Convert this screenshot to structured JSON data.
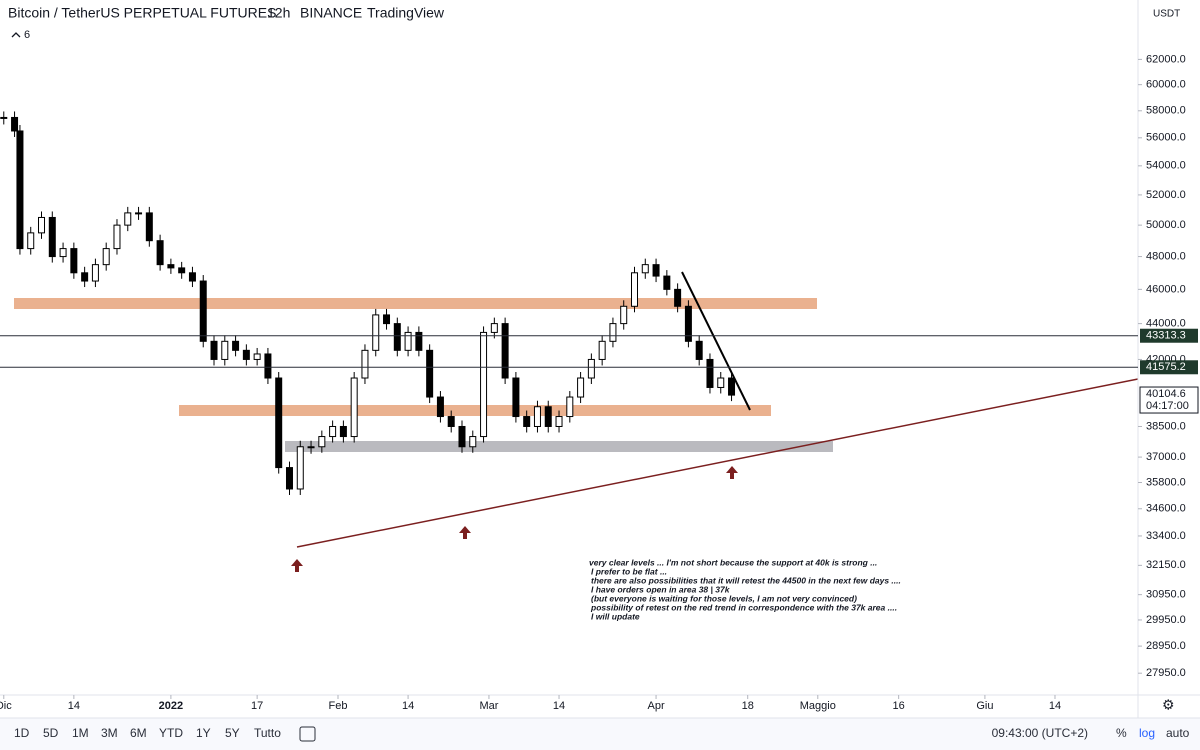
{
  "header": {
    "symbol": "Bitcoin / TetherUS PERPETUAL FUTURES",
    "interval": "12h",
    "exchange": "BINANCE",
    "source": "TradingView",
    "indicators": "6",
    "currency": "USDT"
  },
  "chart_data": {
    "type": "candlestick",
    "log_scale": true,
    "ylim": [
      27170,
      66970
    ],
    "yticks": [
      {
        "value": 62000,
        "label": "62000.0"
      },
      {
        "value": 60000,
        "label": "60000.0"
      },
      {
        "value": 58000,
        "label": "58000.0"
      },
      {
        "value": 56000,
        "label": "56000.0"
      },
      {
        "value": 54000,
        "label": "54000.0"
      },
      {
        "value": 52000,
        "label": "52000.0"
      },
      {
        "value": 50000,
        "label": "50000.0"
      },
      {
        "value": 48000,
        "label": "48000.0"
      },
      {
        "value": 46000,
        "label": "46000.0"
      },
      {
        "value": 44000,
        "label": "44000.0"
      },
      {
        "value": 42000,
        "label": "42000.0"
      },
      {
        "value": 38500,
        "label": "38500.0"
      },
      {
        "value": 37000,
        "label": "37000.0"
      },
      {
        "value": 35800,
        "label": "35800.0"
      },
      {
        "value": 34600,
        "label": "34600.0"
      },
      {
        "value": 33400,
        "label": "33400.0"
      },
      {
        "value": 32150,
        "label": "32150.0"
      },
      {
        "value": 30950,
        "label": "30950.0"
      },
      {
        "value": 29950,
        "label": "29950.0"
      },
      {
        "value": 28950,
        "label": "28950.0"
      },
      {
        "value": 27950,
        "label": "27950.0"
      }
    ],
    "xlim": [
      -0.7,
      210.4
    ],
    "xticks": [
      {
        "value": 0,
        "label": "Dic"
      },
      {
        "value": 13,
        "label": "14"
      },
      {
        "value": 31,
        "label": "2022"
      },
      {
        "value": 47,
        "label": "17"
      },
      {
        "value": 62,
        "label": "Feb"
      },
      {
        "value": 75,
        "label": "14"
      },
      {
        "value": 90,
        "label": "Mar"
      },
      {
        "value": 103,
        "label": "14"
      },
      {
        "value": 121,
        "label": "Apr"
      },
      {
        "value": 138,
        "label": "18"
      },
      {
        "value": 151,
        "label": "Maggio"
      },
      {
        "value": 166,
        "label": "16"
      },
      {
        "value": 182,
        "label": "Giu"
      },
      {
        "value": 195,
        "label": "14"
      }
    ],
    "x": [
      0,
      2,
      3,
      5,
      7,
      9,
      11,
      13,
      15,
      17,
      19,
      21,
      23,
      25,
      27,
      29,
      31,
      33,
      35,
      37,
      39,
      41,
      43,
      45,
      47,
      49,
      51,
      53,
      55,
      57,
      59,
      61,
      63,
      65,
      67,
      69,
      71,
      73,
      75,
      77,
      79,
      81,
      83,
      85,
      87,
      89,
      91,
      93,
      95,
      97,
      99,
      101,
      103,
      105,
      107,
      109,
      111,
      113,
      115,
      117,
      119,
      121,
      123,
      125,
      127,
      129,
      131,
      133,
      135
    ],
    "closes": [
      57500,
      56500,
      48500,
      49500,
      50500,
      48000,
      48500,
      47000,
      46500,
      47500,
      48500,
      50000,
      50800,
      50800,
      49000,
      47500,
      47300,
      47000,
      46500,
      43000,
      42000,
      43000,
      42500,
      42000,
      42300,
      41000,
      36500,
      35500,
      37500,
      37500,
      38000,
      38500,
      38000,
      41000,
      42500,
      44500,
      44000,
      42500,
      43500,
      42500,
      40000,
      39000,
      38500,
      37500,
      38000,
      43500,
      44000,
      41000,
      39000,
      38500,
      39500,
      38500,
      39000,
      40000,
      41000,
      42000,
      43000,
      44000,
      45000,
      47000,
      47500,
      46800,
      46000,
      45000,
      43000,
      42000,
      40500,
      41000,
      40100
    ],
    "price_lines": [
      {
        "value": 43313.3,
        "label": "43313.3"
      },
      {
        "value": 41575.2,
        "label": "41575.2"
      }
    ],
    "last_price": {
      "value": 40104.6,
      "label": "40104.6"
    },
    "countdown": "04:17:00"
  },
  "annotation": [
    "very clear levels ... I'm not short because the support at 40k is strong ...",
    "I prefer to be flat ...",
    "there are also possibilities that it will retest the 44500 in the next few days ....",
    "I have orders open in area 38 | 37k",
    "(but everyone is waiting for those levels, I am not very convinced)",
    "possibility of retest on the red trend in correspondence with the 37k area ....",
    "I will update"
  ],
  "toolbar": {
    "ranges": [
      "1D",
      "5D",
      "1M",
      "3M",
      "6M",
      "YTD",
      "1Y",
      "5Y",
      "Tutto"
    ],
    "clock": "09:43:00 (UTC+2)",
    "percent": "%",
    "log": "log",
    "auto": "auto"
  }
}
